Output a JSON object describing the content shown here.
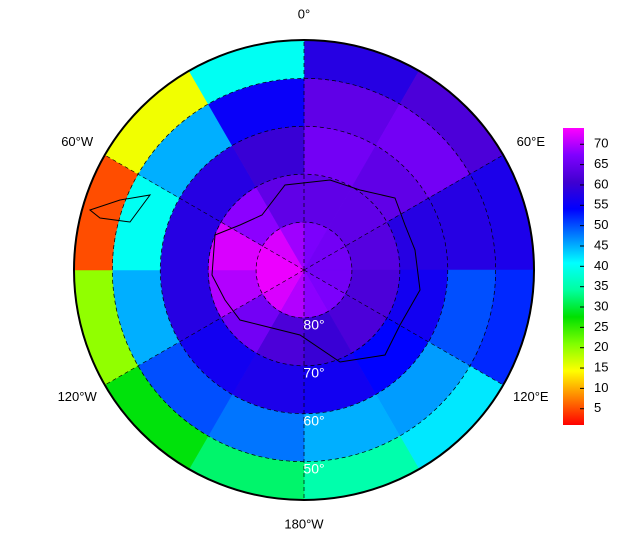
{
  "chart_data": {
    "type": "polar-map",
    "lon_labels": [
      {
        "value": 0,
        "label": "0°"
      },
      {
        "value": 60,
        "label": "60°E"
      },
      {
        "value": 120,
        "label": "120°E"
      },
      {
        "value": 180,
        "label": "180°W"
      },
      {
        "value": -120,
        "label": "120°W"
      },
      {
        "value": -60,
        "label": "60°W"
      }
    ],
    "lat_labels": [
      {
        "value": 80,
        "label": "80°"
      },
      {
        "value": 70,
        "label": "70°"
      },
      {
        "value": 60,
        "label": "60°"
      },
      {
        "value": 50,
        "label": "50°"
      }
    ],
    "boundary_lat": 42,
    "lat_edges": [
      90,
      80,
      70,
      60,
      50,
      42
    ],
    "lon_edges": [
      0,
      30,
      60,
      90,
      120,
      150,
      180,
      210,
      240,
      270,
      300,
      330,
      360
    ],
    "values": [
      [
        67,
        66,
        66,
        66,
        67,
        68,
        70,
        72,
        73,
        73,
        72,
        69
      ],
      [
        64,
        64,
        63,
        62,
        62,
        60,
        62,
        66,
        70,
        72,
        68,
        64
      ],
      [
        66,
        64,
        58,
        56,
        54,
        56,
        57,
        56,
        58,
        58,
        58,
        60
      ],
      [
        64,
        66,
        58,
        50,
        46,
        45,
        48,
        50,
        45,
        40,
        45,
        55
      ],
      [
        58,
        62,
        57,
        52,
        42,
        35,
        32,
        28,
        20,
        5,
        15,
        40
      ]
    ],
    "colormap": [
      "#ff0000",
      "#ff8000",
      "#ffff00",
      "#80ff00",
      "#00e000",
      "#00ffa0",
      "#00ffff",
      "#0080ff",
      "#0000ff",
      "#4000d0",
      "#8000ff",
      "#ff00ff"
    ],
    "clim": [
      1,
      74
    ],
    "cticks": [
      5,
      10,
      15,
      20,
      25,
      30,
      35,
      40,
      45,
      50,
      55,
      60,
      65,
      70
    ]
  }
}
